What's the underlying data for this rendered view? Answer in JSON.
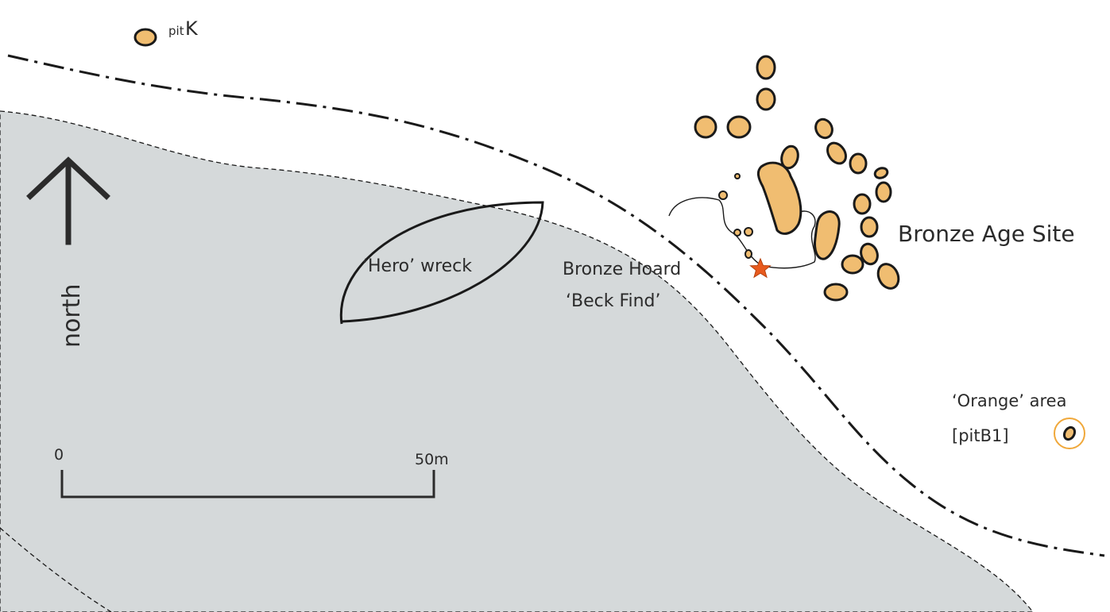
{
  "colors": {
    "sea": "#d5d9da",
    "pit_fill": "#f0bd71",
    "outline": "#1a1a1a",
    "star": "#e85a1e",
    "orange_ring": "#f0a83a"
  },
  "labels": {
    "pit_k_sub": "pit",
    "pit_k_main": "K",
    "north": "north",
    "hero_wreck": "‘Hero’ wreck",
    "bronze_hoard_line1": "Bronze Hoard",
    "bronze_hoard_line2": "‘Beck Find’",
    "bronze_age_site": "Bronze Age Site",
    "orange_area_line1": "‘Orange’ area",
    "orange_area_line2": "[pitB1]",
    "scale_start": "0",
    "scale_end": "50m"
  },
  "icons": {
    "north_arrow": "north-arrow-icon",
    "find_spot": "star-icon"
  }
}
